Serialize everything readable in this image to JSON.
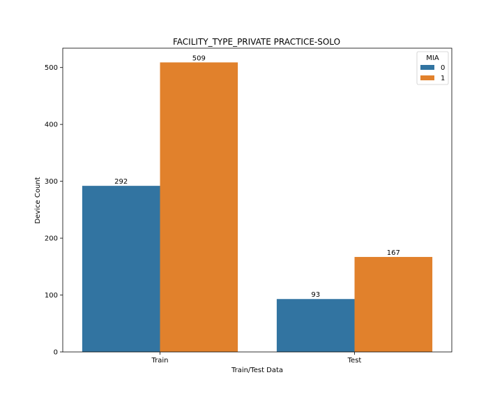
{
  "chart_data": {
    "type": "bar",
    "title": "FACILITY_TYPE_PRIVATE PRACTICE-SOLO",
    "xlabel": "Train/Test Data",
    "ylabel": "Device Count",
    "categories": [
      "Train",
      "Test"
    ],
    "series": [
      {
        "name": "0",
        "values": [
          292,
          93
        ],
        "color": "#3274a1"
      },
      {
        "name": "1",
        "values": [
          509,
          167
        ],
        "color": "#e1812c"
      }
    ],
    "ylim": [
      0,
      534
    ],
    "yticks": [
      0,
      100,
      200,
      300,
      400,
      500
    ],
    "legend": {
      "title": "MIA",
      "placement": "top-right"
    },
    "grid": false
  }
}
